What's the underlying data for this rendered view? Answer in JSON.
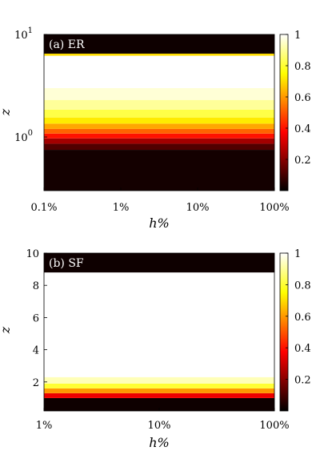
{
  "chart_data": [
    {
      "type": "heatmap",
      "panel_label": "(a) ER",
      "xlabel": "h%",
      "ylabel": "z",
      "x_scale": "log",
      "y_scale": "log",
      "x_range_percent": [
        0.1,
        100
      ],
      "y_range": [
        0.3,
        10
      ],
      "x_ticks": [
        {
          "value": 0.1,
          "label": "0.1%"
        },
        {
          "value": 1,
          "label": "1%"
        },
        {
          "value": 10,
          "label": "10%"
        },
        {
          "value": 100,
          "label": "100%"
        }
      ],
      "y_ticks": [
        {
          "value": 1,
          "label": "10",
          "exp": "0"
        },
        {
          "value": 10,
          "label": "10",
          "exp": "1"
        }
      ],
      "colorbar": {
        "colormap": "hot",
        "range": [
          0,
          1
        ],
        "ticks": [
          {
            "value": 0.2,
            "label": "0.2"
          },
          {
            "value": 0.4,
            "label": "0.4"
          },
          {
            "value": 0.6,
            "label": "0.6"
          },
          {
            "value": 0.8,
            "label": "0.8"
          },
          {
            "value": 1.0,
            "label": "1"
          }
        ]
      },
      "bands": [
        {
          "y0": 0.3,
          "y1": 0.75,
          "value": 0.03
        },
        {
          "y0": 0.75,
          "y1": 0.86,
          "value": 0.12
        },
        {
          "y0": 0.86,
          "y1": 0.97,
          "value": 0.24
        },
        {
          "y0": 0.97,
          "y1": 1.08,
          "value": 0.4
        },
        {
          "y0": 1.08,
          "y1": 1.2,
          "value": 0.52
        },
        {
          "y0": 1.2,
          "y1": 1.35,
          "value": 0.62
        },
        {
          "y0": 1.35,
          "y1": 1.55,
          "value": 0.72
        },
        {
          "y0": 1.55,
          "y1": 1.85,
          "value": 0.82
        },
        {
          "y0": 1.85,
          "y1": 2.3,
          "value": 0.9
        },
        {
          "y0": 2.3,
          "y1": 3.0,
          "value": 0.96
        },
        {
          "y0": 3.0,
          "y1": 6.2,
          "value": 1.0
        },
        {
          "y0": 6.2,
          "y1": 6.5,
          "value": 0.7
        },
        {
          "y0": 6.5,
          "y1": 10,
          "value": 0.02
        }
      ]
    },
    {
      "type": "heatmap",
      "panel_label": "(b) SF",
      "xlabel": "h%",
      "ylabel": "z",
      "x_scale": "log",
      "y_scale": "linear",
      "x_range_percent": [
        1,
        100
      ],
      "y_range": [
        0.2,
        10
      ],
      "x_ticks": [
        {
          "value": 1,
          "label": "1%"
        },
        {
          "value": 10,
          "label": "10%"
        },
        {
          "value": 100,
          "label": "100%"
        }
      ],
      "y_ticks": [
        {
          "value": 2,
          "label": "2"
        },
        {
          "value": 4,
          "label": "4"
        },
        {
          "value": 6,
          "label": "6"
        },
        {
          "value": 8,
          "label": "8"
        },
        {
          "value": 10,
          "label": "10"
        }
      ],
      "colorbar": {
        "colormap": "hot",
        "range": [
          0,
          1
        ],
        "ticks": [
          {
            "value": 0.2,
            "label": "0.2"
          },
          {
            "value": 0.4,
            "label": "0.4"
          },
          {
            "value": 0.6,
            "label": "0.6"
          },
          {
            "value": 0.8,
            "label": "0.8"
          },
          {
            "value": 1.0,
            "label": "1"
          }
        ]
      },
      "bands": [
        {
          "y0": 0.2,
          "y1": 1.0,
          "value": 0.02
        },
        {
          "y0": 1.0,
          "y1": 1.3,
          "value": 0.35
        },
        {
          "y0": 1.3,
          "y1": 1.6,
          "value": 0.6
        },
        {
          "y0": 1.6,
          "y1": 1.9,
          "value": 0.8
        },
        {
          "y0": 1.9,
          "y1": 2.3,
          "value": 0.93
        },
        {
          "y0": 2.3,
          "y1": 8.8,
          "value": 1.0
        },
        {
          "y0": 8.8,
          "y1": 10,
          "value": 0.02
        }
      ]
    }
  ]
}
